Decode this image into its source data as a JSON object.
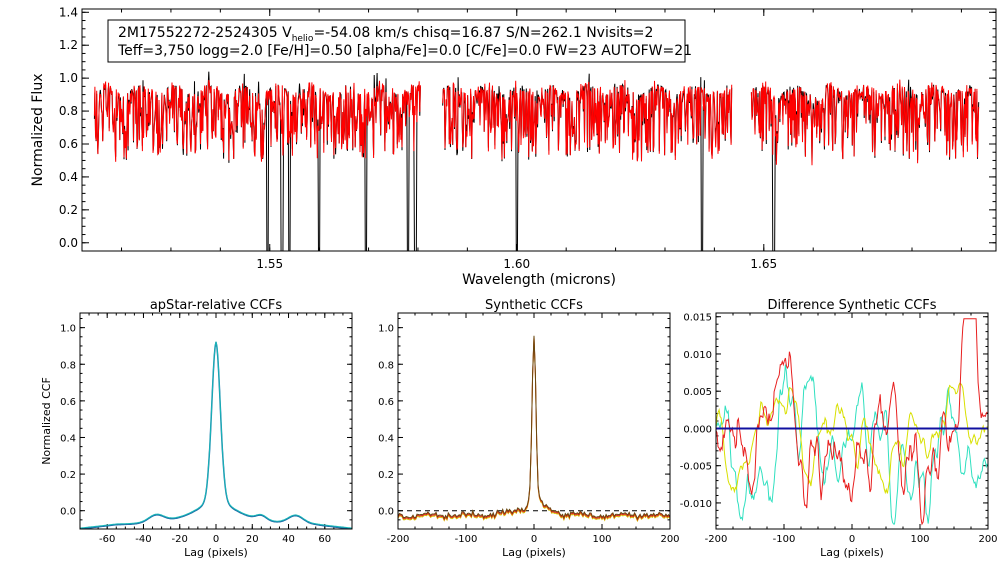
{
  "chart_data": [
    {
      "type": "line",
      "id": "spectrum",
      "title": "",
      "xlabel": "Wavelength (microns)",
      "ylabel": "Normalized Flux",
      "xlim": [
        1.512,
        1.697
      ],
      "ylim": [
        -0.05,
        1.42
      ],
      "xticks": [
        1.55,
        1.6,
        1.65
      ],
      "xtick_labels": [
        "1.55",
        "1.60",
        "1.65"
      ],
      "yticks": [
        0.0,
        0.2,
        0.4,
        0.6,
        0.8,
        1.0,
        1.2,
        1.4
      ],
      "ytick_labels": [
        "0.0",
        "0.2",
        "0.4",
        "0.6",
        "0.8",
        "1.0",
        "1.2",
        "1.4"
      ],
      "info_box": {
        "line1_pre": "2M17552272-2524305  V",
        "line1_sub": "helio",
        "line1_post": "=-54.08 km/s  chisq=16.87  S/N=262.1  Nvisits=2",
        "line2": "Teff=3,750 logg=2.0 [Fe/H]=0.50 [alpha/Fe]=0.0 [C/Fe]=0.0 FW=23 AUTOFW=21"
      },
      "chips": [
        [
          1.5145,
          1.5805
        ],
        [
          1.585,
          1.6435
        ],
        [
          1.6475,
          1.6935
        ]
      ],
      "dropouts": [
        1.5495,
        1.5525,
        1.554,
        1.56,
        1.5695,
        1.578,
        1.5795,
        1.6,
        1.6375,
        1.652
      ],
      "series": [
        {
          "name": "observed",
          "color": "#000000"
        },
        {
          "name": "model",
          "color": "#ff0000"
        }
      ]
    },
    {
      "type": "line",
      "id": "apstar_ccf",
      "title": "apStar-relative CCFs",
      "xlabel": "Lag (pixels)",
      "ylabel": "Normalized CCF",
      "xlim": [
        -75,
        75
      ],
      "ylim": [
        -0.1,
        1.08
      ],
      "xticks": [
        -60,
        -40,
        -20,
        0,
        20,
        40,
        60
      ],
      "xtick_labels": [
        "-60",
        "-40",
        "-20",
        "0",
        "20",
        "40",
        "60"
      ],
      "yticks": [
        0.0,
        0.2,
        0.4,
        0.6,
        0.8,
        1.0
      ],
      "ytick_labels": [
        "0.0",
        "0.2",
        "0.4",
        "0.6",
        "0.8",
        "1.0"
      ],
      "series": [
        {
          "name": "ccf-1",
          "color": "#1f6fa8"
        },
        {
          "name": "ccf-2",
          "color": "#18b8b8"
        }
      ]
    },
    {
      "type": "line",
      "id": "synthetic_ccf",
      "title": "Synthetic CCFs",
      "xlabel": "Lag (pixels)",
      "ylabel": "",
      "xlim": [
        -200,
        200
      ],
      "ylim": [
        -0.1,
        1.08
      ],
      "xticks": [
        -200,
        -100,
        0,
        100,
        200
      ],
      "xtick_labels": [
        "-200",
        "-100",
        "0",
        "100",
        "200"
      ],
      "yticks": [
        0.0,
        0.2,
        0.4,
        0.6,
        0.8,
        1.0
      ],
      "ytick_labels": [
        "0.0",
        "0.2",
        "0.4",
        "0.6",
        "0.8",
        "1.0"
      ],
      "zero_line": true,
      "series": [
        {
          "name": "ccf-yellow",
          "color": "#d4c400"
        },
        {
          "name": "ccf-red",
          "color": "#e02020"
        },
        {
          "name": "ccf-dark",
          "color": "#6a4a10"
        }
      ]
    },
    {
      "type": "line",
      "id": "diff_ccf",
      "title": "Difference Synthetic CCFs",
      "xlabel": "Lag (pixels)",
      "ylabel": "",
      "xlim": [
        -200,
        200
      ],
      "ylim": [
        -0.0135,
        0.0155
      ],
      "xticks": [
        -200,
        -100,
        0,
        100,
        200
      ],
      "xtick_labels": [
        "-200",
        "-100",
        "0",
        "100",
        "200"
      ],
      "yticks": [
        -0.01,
        -0.005,
        0.0,
        0.005,
        0.01,
        0.015
      ],
      "ytick_labels": [
        "-0.010",
        "-0.005",
        "0.000",
        "0.005",
        "0.010",
        "0.015"
      ],
      "series": [
        {
          "name": "diff-cyan",
          "color": "#30e0c0"
        },
        {
          "name": "diff-yellow",
          "color": "#d8e000"
        },
        {
          "name": "diff-red",
          "color": "#e82020"
        },
        {
          "name": "diff-zero",
          "color": "#1010a0"
        }
      ]
    }
  ]
}
